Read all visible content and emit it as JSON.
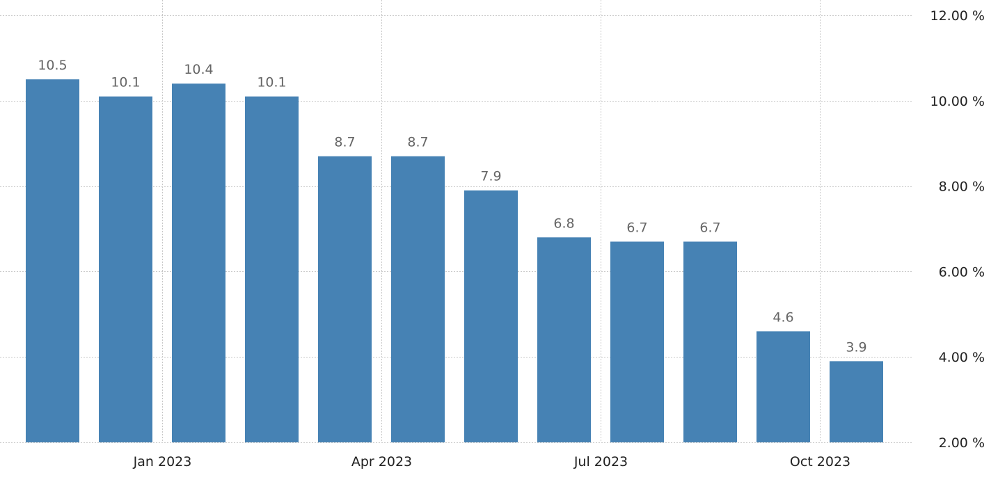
{
  "chart_data": {
    "type": "bar",
    "categories": [
      "2022-11",
      "2022-12",
      "2023-01",
      "2023-02",
      "2023-03",
      "2023-04",
      "2023-05",
      "2023-06",
      "2023-07",
      "2023-08",
      "2023-09",
      "2023-10"
    ],
    "values": [
      10.5,
      10.1,
      10.4,
      10.1,
      8.7,
      8.7,
      7.9,
      6.8,
      6.7,
      6.7,
      4.6,
      3.9
    ],
    "value_labels": [
      "10.5",
      "10.1",
      "10.4",
      "10.1",
      "8.7",
      "8.7",
      "7.9",
      "6.8",
      "6.7",
      "6.7",
      "4.6",
      "3.9"
    ],
    "x_ticks": [
      {
        "category": "2023-01",
        "label": "Jan 2023"
      },
      {
        "category": "2023-04",
        "label": "Apr 2023"
      },
      {
        "category": "2023-07",
        "label": "Jul 2023"
      },
      {
        "category": "2023-10",
        "label": "Oct 2023"
      }
    ],
    "y_ticks": [
      {
        "value": 2,
        "label": "2.00 %"
      },
      {
        "value": 4,
        "label": "4.00 %"
      },
      {
        "value": 6,
        "label": "6.00 %"
      },
      {
        "value": 8,
        "label": "8.00 %"
      },
      {
        "value": 10,
        "label": "10.00 %"
      },
      {
        "value": 12,
        "label": "12.00 %"
      }
    ],
    "ylim": [
      2,
      12
    ],
    "y_axis_position": "right",
    "grid": true,
    "legend": false,
    "title": "",
    "xlabel": "",
    "ylabel": "",
    "colors": {
      "bar": "#4682b4",
      "grid": "#c8c8c8",
      "data_label": "#666666",
      "axis_label": "#222222"
    }
  }
}
